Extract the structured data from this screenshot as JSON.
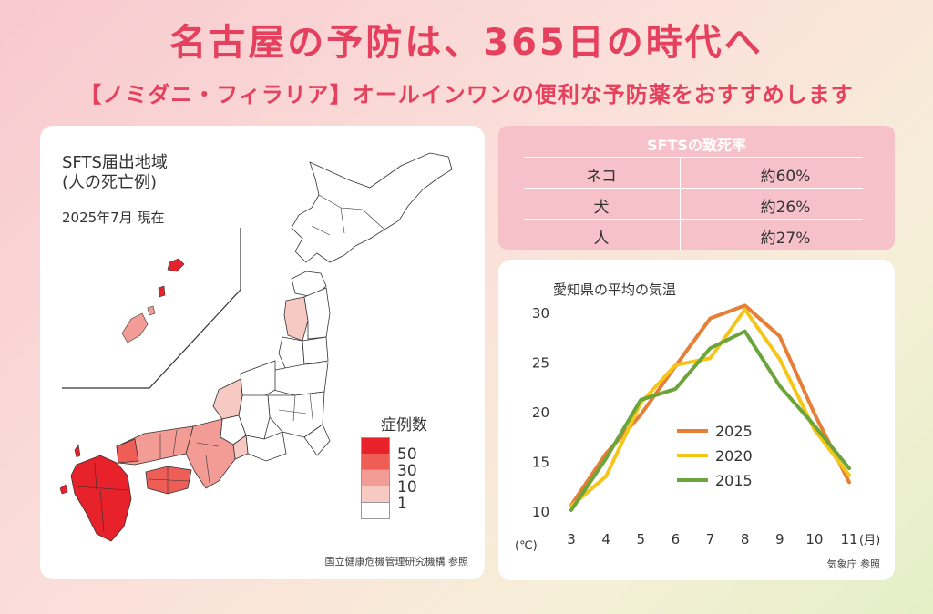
{
  "header": {
    "title": "名古屋の予防は、365日の時代へ",
    "subtitle": "【ノミダニ・フィラリア】オールインワンの便利な予防薬をおすすめします"
  },
  "map_panel": {
    "title_line1": "SFTS届出地域",
    "title_line2": "(人の死亡例)",
    "date": "2025年7月 現在",
    "legend_title": "症例数",
    "legend": [
      {
        "label": "50",
        "color": "#e8222a"
      },
      {
        "label": "30",
        "color": "#ee5e57"
      },
      {
        "label": "10",
        "color": "#f39c95"
      },
      {
        "label": "1",
        "color": "#f7c9c3"
      },
      {
        "label": "",
        "color": "#ffffff"
      }
    ],
    "source": "国立健康危機管理研究機構 参照"
  },
  "fatality": {
    "title": "SFTSの致死率",
    "rows": [
      {
        "label": "ネコ",
        "value": "約60%"
      },
      {
        "label": "犬",
        "value": "約26%"
      },
      {
        "label": "人",
        "value": "約27%"
      }
    ]
  },
  "temperature_panel": {
    "source": "気象庁 参照"
  },
  "chart_data": {
    "type": "line",
    "title": "愛知県の平均の気温",
    "xlabel": "(月)",
    "ylabel": "(℃)",
    "x": [
      3,
      4,
      5,
      6,
      7,
      8,
      9,
      10,
      11
    ],
    "ylim": [
      10,
      30
    ],
    "yticks": [
      10,
      15,
      20,
      25,
      30
    ],
    "grid": false,
    "legend_position": "left-center",
    "series": [
      {
        "name": "2025",
        "color": "#e67e35",
        "values": [
          10.6,
          15.8,
          19.7,
          24.6,
          29.4,
          30.7,
          27.6,
          19.8,
          12.9
        ]
      },
      {
        "name": "2020",
        "color": "#f5c518",
        "values": [
          10.5,
          13.5,
          20.9,
          24.7,
          25.4,
          30.3,
          25.3,
          18.2,
          13.6
        ]
      },
      {
        "name": "2015",
        "color": "#6ba43a",
        "values": [
          10.1,
          15.3,
          21.2,
          22.3,
          26.4,
          28.1,
          22.6,
          18.6,
          14.3
        ]
      }
    ]
  }
}
